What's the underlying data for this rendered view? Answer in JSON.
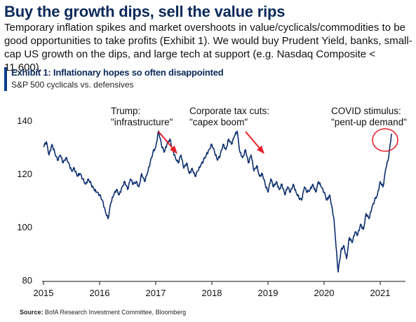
{
  "header": {
    "headline": "Buy the growth dips, sell the value rips",
    "subtitle": "Temporary inflation spikes and market overshoots in value/cyclicals/commodities to be good opportunities to take profits (Exhibit 1). We would buy Prudent Yield, banks, small-cap US growth on the dips, and large tech at support (e.g. Nasdaq Composite < 11,600)."
  },
  "exhibit": {
    "title": "Exhibit 1: Inflationary hopes so often disappointed",
    "subtitle": "S&P 500 cyclicals vs. defensives"
  },
  "footer": {
    "source_label": "Source:",
    "source_text": "BofA Research Investment Committee, Bloomberg"
  },
  "colors": {
    "line": "#0b2e6e",
    "accent": "#e8202a",
    "headline": "#0b2a5b"
  },
  "chart_data": {
    "type": "line",
    "title": "Exhibit 1: Inflationary hopes so often disappointed",
    "subtitle": "S&P 500 cyclicals vs. defensives",
    "xlabel": "",
    "ylabel": "",
    "xlim": [
      2015.0,
      2021.45
    ],
    "ylim": [
      80,
      140
    ],
    "x_ticks": [
      "2015",
      "2016",
      "2017",
      "2018",
      "2019",
      "2020",
      "2021"
    ],
    "y_ticks": [
      80,
      100,
      120,
      140
    ],
    "grid": false,
    "series": [
      {
        "name": "",
        "x": [
          2015.0,
          2015.05,
          2015.1,
          2015.15,
          2015.2,
          2015.25,
          2015.3,
          2015.35,
          2015.4,
          2015.45,
          2015.5,
          2015.55,
          2015.6,
          2015.65,
          2015.7,
          2015.75,
          2015.8,
          2015.85,
          2015.9,
          2015.95,
          2016.0,
          2016.05,
          2016.1,
          2016.15,
          2016.2,
          2016.25,
          2016.3,
          2016.35,
          2016.4,
          2016.45,
          2016.5,
          2016.55,
          2016.6,
          2016.65,
          2016.7,
          2016.75,
          2016.8,
          2016.85,
          2016.9,
          2016.95,
          2017.0,
          2017.05,
          2017.1,
          2017.15,
          2017.2,
          2017.25,
          2017.3,
          2017.35,
          2017.4,
          2017.45,
          2017.5,
          2017.55,
          2017.6,
          2017.65,
          2017.7,
          2017.75,
          2017.8,
          2017.85,
          2017.9,
          2017.95,
          2018.0,
          2018.05,
          2018.1,
          2018.15,
          2018.2,
          2018.25,
          2018.3,
          2018.35,
          2018.4,
          2018.45,
          2018.5,
          2018.55,
          2018.6,
          2018.65,
          2018.7,
          2018.75,
          2018.8,
          2018.85,
          2018.9,
          2018.95,
          2019.0,
          2019.05,
          2019.1,
          2019.15,
          2019.2,
          2019.25,
          2019.3,
          2019.35,
          2019.4,
          2019.45,
          2019.5,
          2019.55,
          2019.6,
          2019.65,
          2019.7,
          2019.75,
          2019.8,
          2019.85,
          2019.9,
          2019.95,
          2020.0,
          2020.05,
          2020.1,
          2020.15,
          2020.18,
          2020.2,
          2020.25,
          2020.3,
          2020.35,
          2020.4,
          2020.45,
          2020.5,
          2020.55,
          2020.6,
          2020.65,
          2020.7,
          2020.75,
          2020.8,
          2020.85,
          2020.9,
          2020.95,
          2021.0,
          2021.05,
          2021.1,
          2021.15,
          2021.2
        ],
        "y": [
          130,
          132,
          127,
          131,
          128,
          125,
          127,
          124,
          126,
          124,
          121,
          122,
          119,
          120,
          118,
          116,
          118,
          116,
          114,
          113,
          112,
          110,
          106,
          103,
          109,
          112,
          114,
          112,
          115,
          117,
          114,
          118,
          116,
          117,
          115,
          120,
          117,
          120,
          124,
          128,
          130,
          136,
          131,
          128,
          131,
          133,
          129,
          126,
          124,
          127,
          122,
          124,
          120,
          122,
          119,
          121,
          123,
          125,
          127,
          129,
          131,
          128,
          125,
          127,
          131,
          129,
          133,
          131,
          134,
          136,
          128,
          126,
          129,
          124,
          127,
          121,
          123,
          119,
          120,
          116,
          113,
          118,
          115,
          117,
          114,
          116,
          112,
          115,
          113,
          116,
          113,
          111,
          110,
          115,
          113,
          114,
          116,
          113,
          117,
          115,
          113,
          110,
          112,
          106,
          102,
          96,
          83,
          91,
          93,
          88,
          96,
          94,
          98,
          97,
          101,
          99,
          105,
          103,
          107,
          110,
          112,
          117,
          115,
          122,
          126,
          135
        ]
      }
    ],
    "annotations": [
      {
        "lines": [
          "Trump:",
          "\"infrastructure\""
        ]
      },
      {
        "lines": [
          "Corporate tax cuts:",
          "\"capex boom\""
        ]
      },
      {
        "lines": [
          "COVID stimulus:",
          "\"pent-up demand\""
        ]
      }
    ]
  }
}
